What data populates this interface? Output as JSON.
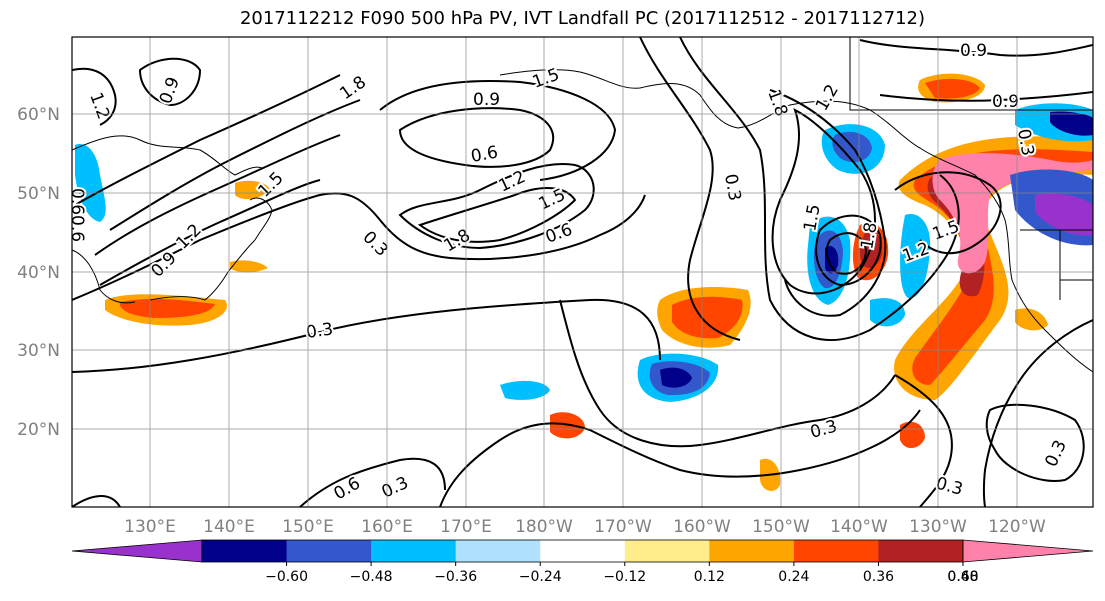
{
  "title": "2017112212 F090 500 hPa PV, IVT Landfall PC (2017112512 - 2017112712)",
  "lat_labels": [
    "60°N",
    "50°N",
    "40°N",
    "30°N",
    "20°N"
  ],
  "lon_labels": [
    "130°E",
    "140°E",
    "150°E",
    "160°E",
    "170°E",
    "180°W",
    "170°W",
    "160°W",
    "150°W",
    "140°W",
    "130°W",
    "120°W"
  ],
  "contour_labels": [
    "1.2",
    "0.9",
    "1.8",
    "0.9",
    "1.5",
    "0.6",
    "1.2",
    "1.5",
    "0.6",
    "0.3",
    "1.8",
    "1.5",
    "1.2",
    "0.9",
    "0.6",
    "0.6",
    "0.3",
    "0.3",
    "0.6",
    "0.3",
    "0.3",
    "0.3",
    "1.8",
    "1.2",
    "0.9",
    "0.3",
    "0.9",
    "1.5",
    "1.8",
    "1.2",
    "1.5",
    "0.3"
  ],
  "colorbar": {
    "colors": [
      "#9932cc",
      "#00008b",
      "#3358cc",
      "#00bfff",
      "#b0e2ff",
      "#ffffff",
      "#ffec8b",
      "#ffa500",
      "#ff4500",
      "#b22222",
      "#ff82ab"
    ],
    "tick_labels": [
      "−0.60",
      "−0.48",
      "−0.36",
      "−0.24",
      "−0.12",
      "0.12",
      "0.24",
      "0.36",
      "0.48",
      "0.60"
    ]
  }
}
